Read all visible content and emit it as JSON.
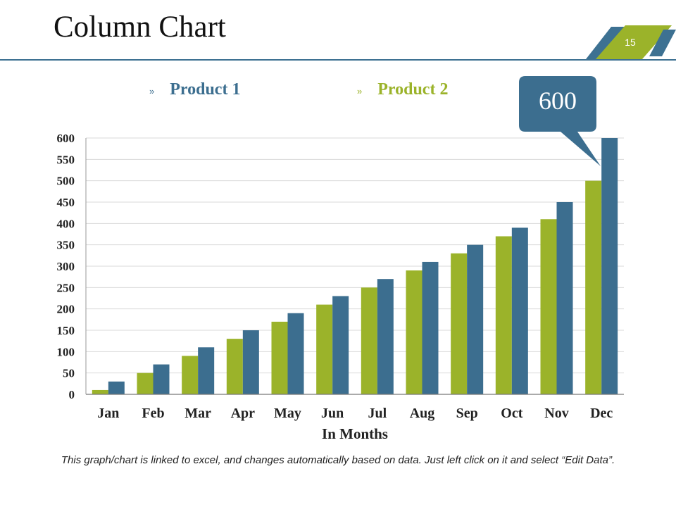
{
  "slide": {
    "title": "Column Chart",
    "page_number": "15",
    "footnote": "This graph/chart is linked to excel, and changes automatically based on data. Just left click on it and select “Edit Data”."
  },
  "colors": {
    "product1": "#3c6e8f",
    "product2": "#9bb32a",
    "callout": "#3c6e8f",
    "accent_rule": "#3d7192"
  },
  "legend": {
    "bullet": "»",
    "items": [
      {
        "label": "Product 1"
      },
      {
        "label": "Product 2"
      }
    ]
  },
  "callout": {
    "text": "600",
    "category": "Dec",
    "series": "Product 1"
  },
  "chart_data": {
    "type": "bar",
    "title": "",
    "xlabel": "In Months",
    "ylabel": "",
    "ylim": [
      0,
      600
    ],
    "yticks": [
      0,
      50,
      100,
      150,
      200,
      250,
      300,
      350,
      400,
      450,
      500,
      550,
      600
    ],
    "grid": true,
    "legend_position": "top",
    "categories": [
      "Jan",
      "Feb",
      "Mar",
      "Apr",
      "May",
      "Jun",
      "Jul",
      "Aug",
      "Sep",
      "Oct",
      "Nov",
      "Dec"
    ],
    "series": [
      {
        "name": "Product 2",
        "color": "#9bb32a",
        "values": [
          10,
          50,
          90,
          130,
          170,
          210,
          250,
          290,
          330,
          370,
          410,
          500
        ]
      },
      {
        "name": "Product 1",
        "color": "#3c6e8f",
        "values": [
          30,
          70,
          110,
          150,
          190,
          230,
          270,
          310,
          350,
          390,
          450,
          600
        ]
      }
    ]
  }
}
